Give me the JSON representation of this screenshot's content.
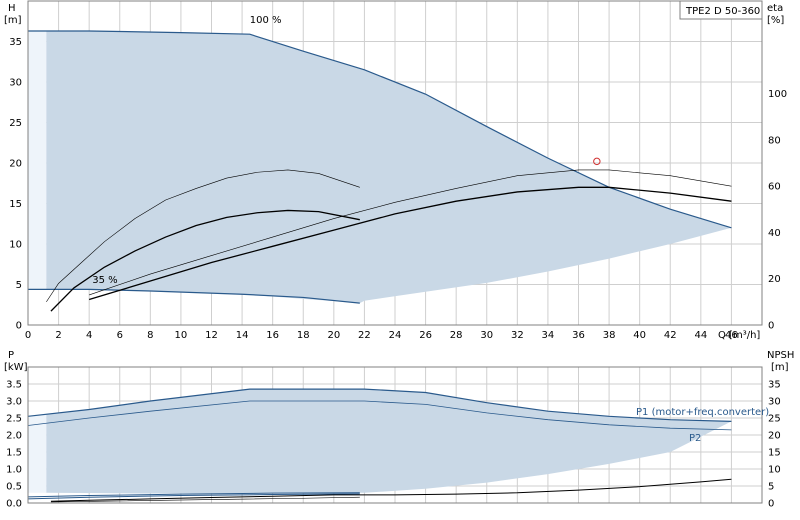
{
  "chart_data": [
    {
      "type": "line",
      "title": "TPE2 D 50-360",
      "xlabel": "Q [m³/h]",
      "ylabel": "H",
      "ylabel_unit": "[m]",
      "y2label": "eta",
      "y2label_unit": "[%]",
      "xlim": [
        0,
        48
      ],
      "ylim": [
        0,
        40
      ],
      "y2lim": [
        0,
        140
      ],
      "x_ticks": [
        0,
        2,
        4,
        6,
        8,
        10,
        12,
        14,
        16,
        18,
        20,
        22,
        24,
        26,
        28,
        30,
        32,
        34,
        36,
        38,
        40,
        42,
        44,
        46
      ],
      "y_ticks": [
        0,
        5,
        10,
        15,
        20,
        25,
        30,
        35
      ],
      "y2_ticks": [
        0,
        20,
        40,
        60,
        80,
        100
      ],
      "grid": true,
      "annotations": [
        {
          "text": "100 %",
          "x": 14.5,
          "y": 37.3
        },
        {
          "text": "35 %",
          "x": 4.2,
          "y": 5.2
        }
      ],
      "duty_point": {
        "q": 37.2,
        "h": 20.2
      },
      "region": {
        "name": "operating range",
        "color": "#c9d8e6",
        "upper": [
          [
            1.2,
            36.3
          ],
          [
            4,
            36.3
          ],
          [
            14.5,
            35.9
          ],
          [
            18,
            33.8
          ],
          [
            22,
            31.5
          ],
          [
            26,
            28.5
          ],
          [
            30,
            24.5
          ],
          [
            34,
            20.6
          ],
          [
            38,
            17.0
          ],
          [
            42,
            14.3
          ],
          [
            46,
            12.0
          ]
        ],
        "lower": [
          [
            1.2,
            4.4
          ],
          [
            8,
            4.2
          ],
          [
            14,
            3.8
          ],
          [
            21.7,
            2.7
          ],
          [
            22,
            3.0
          ],
          [
            26,
            4.1
          ],
          [
            30,
            5.2
          ],
          [
            34,
            6.6
          ],
          [
            38,
            8.2
          ],
          [
            42,
            10.0
          ],
          [
            46,
            12.0
          ]
        ]
      },
      "series": [
        {
          "name": "",
          "axis": "y",
          "color": "#2a5a8c",
          "width": 1.2,
          "points": [
            [
              0,
              36.3
            ],
            [
              4,
              36.3
            ],
            [
              10,
              36.1
            ],
            [
              14.5,
              35.9
            ],
            [
              18,
              33.8
            ],
            [
              22,
              31.5
            ],
            [
              26,
              28.5
            ],
            [
              30,
              24.5
            ],
            [
              34,
              20.6
            ],
            [
              38,
              17.0
            ],
            [
              42,
              14.3
            ],
            [
              46,
              12.0
            ]
          ]
        },
        {
          "name": "",
          "axis": "y",
          "color": "#2a5a8c",
          "width": 1.2,
          "points": [
            [
              0,
              4.4
            ],
            [
              4,
              4.4
            ],
            [
              8,
              4.2
            ],
            [
              14,
              3.8
            ],
            [
              18,
              3.4
            ],
            [
              21.7,
              2.7
            ]
          ]
        },
        {
          "name": "",
          "axis": "y2",
          "color": "#000000",
          "width": 0.6,
          "points": [
            [
              1.2,
              10
            ],
            [
              2,
              18
            ],
            [
              3.5,
              27
            ],
            [
              5,
              36
            ],
            [
              7,
              46
            ],
            [
              9,
              54
            ],
            [
              11,
              59
            ],
            [
              13,
              63.5
            ],
            [
              15,
              66
            ],
            [
              17,
              67
            ],
            [
              19,
              65.5
            ],
            [
              21.7,
              59.5
            ]
          ]
        },
        {
          "name": "",
          "axis": "y2",
          "color": "#000000",
          "width": 1.3,
          "points": [
            [
              1.5,
              6
            ],
            [
              3,
              16
            ],
            [
              5,
              25
            ],
            [
              7,
              32
            ],
            [
              9,
              38
            ],
            [
              11,
              43
            ],
            [
              13,
              46.5
            ],
            [
              15,
              48.5
            ],
            [
              17,
              49.5
            ],
            [
              19,
              49
            ],
            [
              21.7,
              45.5
            ]
          ]
        },
        {
          "name": "",
          "axis": "y2",
          "color": "#000000",
          "width": 0.6,
          "points": [
            [
              4,
              13
            ],
            [
              8,
              22
            ],
            [
              12,
              30
            ],
            [
              16,
              38
            ],
            [
              20,
              46
            ],
            [
              24,
              53
            ],
            [
              28,
              59
            ],
            [
              32,
              64.5
            ],
            [
              36,
              67
            ],
            [
              38,
              67
            ],
            [
              42,
              64.5
            ],
            [
              46,
              60
            ]
          ]
        },
        {
          "name": "",
          "axis": "y2",
          "color": "#000000",
          "width": 1.3,
          "points": [
            [
              4,
              11
            ],
            [
              8,
              19
            ],
            [
              12,
              27
            ],
            [
              16,
              34
            ],
            [
              20,
              41
            ],
            [
              24,
              48
            ],
            [
              28,
              53.5
            ],
            [
              32,
              57.5
            ],
            [
              36,
              59.5
            ],
            [
              38,
              59.5
            ],
            [
              42,
              57
            ],
            [
              46,
              53.5
            ]
          ]
        }
      ]
    },
    {
      "type": "line",
      "title": "",
      "xlabel": "",
      "ylabel": "P",
      "ylabel_unit": "[kW]",
      "y2label": "NPSH",
      "y2label_unit": "[m]",
      "xlim": [
        0,
        48
      ],
      "ylim": [
        0,
        4
      ],
      "y2lim": [
        0,
        40
      ],
      "y_ticks": [
        0.0,
        0.5,
        1.0,
        1.5,
        2.0,
        2.5,
        3.0,
        3.5
      ],
      "y2_ticks": [
        0,
        5,
        10,
        15,
        20,
        25,
        30,
        35
      ],
      "grid": true,
      "region": {
        "name": "power range",
        "color": "#c9d8e6",
        "upper": [
          [
            1.2,
            2.62
          ],
          [
            4,
            2.75
          ],
          [
            8,
            3.0
          ],
          [
            14.5,
            3.35
          ],
          [
            22,
            3.35
          ],
          [
            26,
            3.25
          ],
          [
            30,
            2.95
          ],
          [
            34,
            2.7
          ],
          [
            38,
            2.55
          ],
          [
            42,
            2.45
          ],
          [
            46,
            2.4
          ]
        ],
        "lower": [
          [
            1.2,
            0.3
          ],
          [
            8,
            0.28
          ],
          [
            14,
            0.29
          ],
          [
            21.7,
            0.3
          ],
          [
            22,
            0.3
          ],
          [
            26,
            0.42
          ],
          [
            30,
            0.6
          ],
          [
            34,
            0.85
          ],
          [
            38,
            1.15
          ],
          [
            42,
            1.5
          ],
          [
            46,
            2.4
          ]
        ]
      },
      "series": [
        {
          "name": "P1 (motor+freq.converter)",
          "axis": "y",
          "color": "#2a5a8c",
          "width": 1.2,
          "points": [
            [
              0,
              2.55
            ],
            [
              4,
              2.75
            ],
            [
              8,
              3.0
            ],
            [
              14.5,
              3.35
            ],
            [
              22,
              3.35
            ],
            [
              26,
              3.25
            ],
            [
              30,
              2.95
            ],
            [
              34,
              2.7
            ],
            [
              38,
              2.55
            ],
            [
              42,
              2.45
            ],
            [
              46,
              2.4
            ]
          ]
        },
        {
          "name": "P2",
          "axis": "y",
          "color": "#2a5a8c",
          "width": 0.8,
          "points": [
            [
              0,
              2.28
            ],
            [
              4,
              2.5
            ],
            [
              8,
              2.7
            ],
            [
              14.5,
              3.0
            ],
            [
              22,
              3.0
            ],
            [
              26,
              2.9
            ],
            [
              30,
              2.65
            ],
            [
              34,
              2.45
            ],
            [
              38,
              2.3
            ],
            [
              42,
              2.2
            ],
            [
              46,
              2.15
            ]
          ]
        },
        {
          "name": "",
          "axis": "y",
          "color": "#2a5a8c",
          "width": 1.0,
          "points": [
            [
              0,
              0.18
            ],
            [
              4,
              0.22
            ],
            [
              10,
              0.26
            ],
            [
              16,
              0.29
            ],
            [
              21.7,
              0.3
            ]
          ]
        },
        {
          "name": "",
          "axis": "y",
          "color": "#2a5a8c",
          "width": 1.0,
          "points": [
            [
              0,
              0.12
            ],
            [
              4,
              0.17
            ],
            [
              10,
              0.22
            ],
            [
              16,
              0.25
            ],
            [
              21.7,
              0.27
            ]
          ]
        },
        {
          "name": "",
          "axis": "y2",
          "color": "#000000",
          "width": 1.0,
          "points": [
            [
              1.5,
              0.5
            ],
            [
              4,
              0.8
            ],
            [
              8,
              1.2
            ],
            [
              12,
              1.6
            ],
            [
              16,
              2.0
            ],
            [
              20,
              2.4
            ],
            [
              24,
              2.4
            ],
            [
              28,
              2.6
            ],
            [
              32,
              3.0
            ],
            [
              36,
              3.8
            ],
            [
              40,
              4.8
            ],
            [
              44,
              6.2
            ],
            [
              46,
              7.0
            ]
          ]
        },
        {
          "name": "",
          "axis": "y2",
          "color": "#000000",
          "width": 0.6,
          "points": [
            [
              1.5,
              0.3
            ],
            [
              6,
              0.6
            ],
            [
              12,
              1.0
            ],
            [
              18,
              1.4
            ],
            [
              21.7,
              1.7
            ]
          ]
        }
      ]
    }
  ]
}
